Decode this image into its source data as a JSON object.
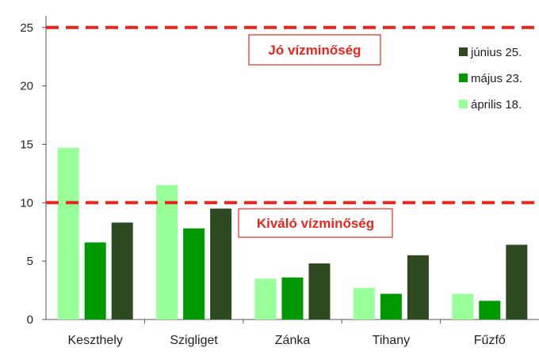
{
  "chart_data": {
    "type": "bar",
    "categories": [
      "Keszthely",
      "Szigliget",
      "Zánka",
      "Tihany",
      "Fűzfő"
    ],
    "series": [
      {
        "name": "április 18.",
        "color": "#99ff99",
        "values": [
          14.7,
          11.5,
          3.5,
          2.7,
          2.2
        ]
      },
      {
        "name": "május 23.",
        "color": "#009900",
        "values": [
          6.6,
          7.8,
          3.6,
          2.2,
          1.6
        ]
      },
      {
        "name": "június 25.",
        "color": "#2e4a22",
        "values": [
          8.3,
          9.5,
          4.8,
          5.5,
          6.4
        ]
      }
    ],
    "ylim": [
      0,
      26
    ],
    "yticks": [
      0,
      5,
      10,
      15,
      20,
      25
    ],
    "ylabel": "",
    "xlabel": "",
    "title": "",
    "legend_position": "top-right",
    "legend_order": [
      "június 25.",
      "május 23.",
      "április 18."
    ],
    "reference_lines": [
      {
        "value": 25,
        "label": "Jó vízminőség",
        "color": "#e8261c"
      },
      {
        "value": 10,
        "label": "Kiváló vízminőség",
        "color": "#e8261c"
      }
    ]
  }
}
